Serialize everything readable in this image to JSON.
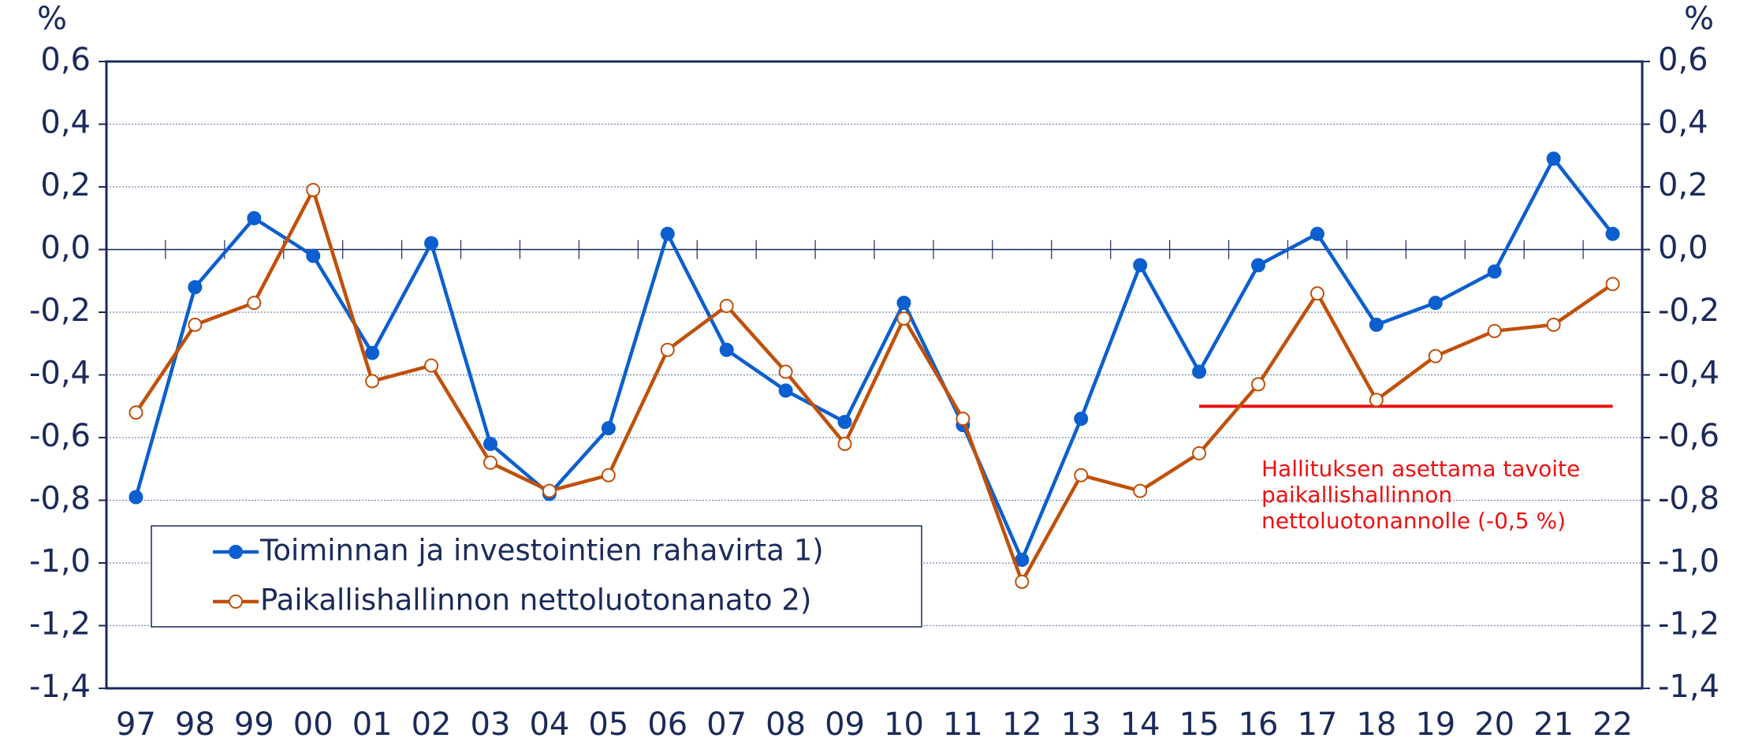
{
  "chart_data": {
    "type": "line",
    "y_label": "%",
    "y2_label": "%",
    "categories": [
      "97",
      "98",
      "99",
      "00",
      "01",
      "02",
      "03",
      "04",
      "05",
      "06",
      "07",
      "08",
      "09",
      "10",
      "11",
      "12",
      "13",
      "14",
      "15",
      "16",
      "17",
      "18",
      "19",
      "20",
      "21",
      "22"
    ],
    "series": [
      {
        "name": "Toiminnan ja investointien rahavirta 1)",
        "color": "#0b5fcf",
        "marker": "filled",
        "values": [
          -0.79,
          -0.12,
          0.1,
          -0.02,
          -0.33,
          0.02,
          -0.62,
          -0.78,
          -0.57,
          0.05,
          -0.32,
          -0.45,
          -0.55,
          -0.17,
          -0.56,
          -0.99,
          -0.54,
          -0.05,
          -0.39,
          -0.05,
          0.05,
          -0.24,
          -0.17,
          -0.07,
          0.29,
          0.05
        ]
      },
      {
        "name": "Paikallishallinnon nettoluotonanato 2)",
        "color": "#c0500a",
        "marker": "open",
        "values": [
          -0.52,
          -0.24,
          -0.17,
          0.19,
          -0.42,
          -0.37,
          -0.68,
          -0.77,
          -0.72,
          -0.32,
          -0.18,
          -0.39,
          -0.62,
          -0.22,
          -0.54,
          -1.06,
          -0.72,
          -0.77,
          -0.65,
          -0.43,
          -0.14,
          -0.48,
          -0.34,
          -0.26,
          -0.24,
          -0.11
        ]
      }
    ],
    "reference_line": {
      "value": -0.5,
      "start": "15",
      "end": "22",
      "color": "#ee1111"
    },
    "annotation": [
      "Hallituksen asettama tavoite",
      "paikallishallinnon",
      "nettoluotonannolle (-0,5 %)"
    ],
    "ylim": [
      -1.4,
      0.6
    ],
    "yticks": [
      {
        "value": -1.4,
        "label": "-1,4"
      },
      {
        "value": -1.2,
        "label": "-1,2"
      },
      {
        "value": -1.0,
        "label": "-1,0"
      },
      {
        "value": -0.8,
        "label": "-0,8"
      },
      {
        "value": -0.6,
        "label": "-0,6"
      },
      {
        "value": -0.4,
        "label": "-0,4"
      },
      {
        "value": -0.2,
        "label": "-0,2"
      },
      {
        "value": 0,
        "label": "0,0"
      },
      {
        "value": 0.2,
        "label": "0,2"
      },
      {
        "value": 0.4,
        "label": "0,4"
      },
      {
        "value": 0.6,
        "label": "0,6"
      }
    ],
    "y2lim": [
      -1.4,
      0.6
    ],
    "y2ticks": [
      {
        "value": -1.4,
        "label": "-1,4"
      },
      {
        "value": -1.2,
        "label": "-1,2"
      },
      {
        "value": -1.0,
        "label": "-1,0"
      },
      {
        "value": -0.8,
        "label": "-0,8"
      },
      {
        "value": -0.6,
        "label": "-0,6"
      },
      {
        "value": -0.4,
        "label": "-0,4"
      },
      {
        "value": -0.2,
        "label": "-0,2"
      },
      {
        "value": 0,
        "label": "0,0"
      },
      {
        "value": 0.2,
        "label": "0,2"
      },
      {
        "value": 0.4,
        "label": "0,4"
      },
      {
        "value": 0.6,
        "label": "0,6"
      }
    ],
    "grid": true,
    "legend": "lower left"
  }
}
